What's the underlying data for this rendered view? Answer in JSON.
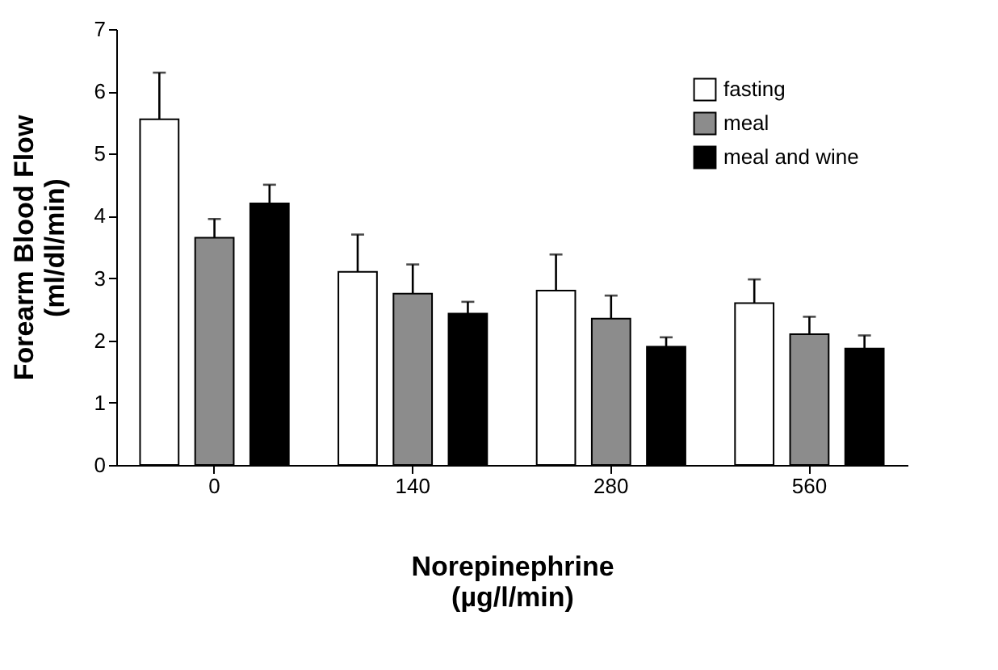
{
  "chart_data": {
    "type": "bar",
    "xlabel": "Norepinephrine\n(µg/l/min)",
    "ylabel": "Forearm Blood Flow\n(ml/dl/min)",
    "categories": [
      "0",
      "140",
      "280",
      "560"
    ],
    "series": [
      {
        "name": "fasting",
        "color": "#ffffff",
        "values": [
          5.55,
          3.1,
          2.8,
          2.6
        ],
        "errors": [
          [
            5.55,
            6.3
          ],
          [
            3.1,
            3.7
          ],
          [
            2.8,
            3.38
          ],
          [
            2.6,
            2.98
          ]
        ]
      },
      {
        "name": "meal",
        "color": "#8c8c8c",
        "values": [
          3.65,
          2.75,
          2.35,
          2.1
        ],
        "errors": [
          [
            3.65,
            3.95
          ],
          [
            2.75,
            3.22
          ],
          [
            2.35,
            2.72
          ],
          [
            2.1,
            2.38
          ]
        ]
      },
      {
        "name": "meal and wine",
        "color": "#000000",
        "values": [
          4.2,
          2.43,
          1.9,
          1.87
        ],
        "errors": [
          [
            4.2,
            4.5
          ],
          [
            2.43,
            2.62
          ],
          [
            1.9,
            2.05
          ],
          [
            1.87,
            2.08
          ]
        ]
      }
    ],
    "ylim": [
      0,
      7
    ],
    "yticks": [
      0,
      1,
      2,
      3,
      4,
      5,
      6,
      7
    ],
    "grid": false,
    "legend": "top right"
  }
}
